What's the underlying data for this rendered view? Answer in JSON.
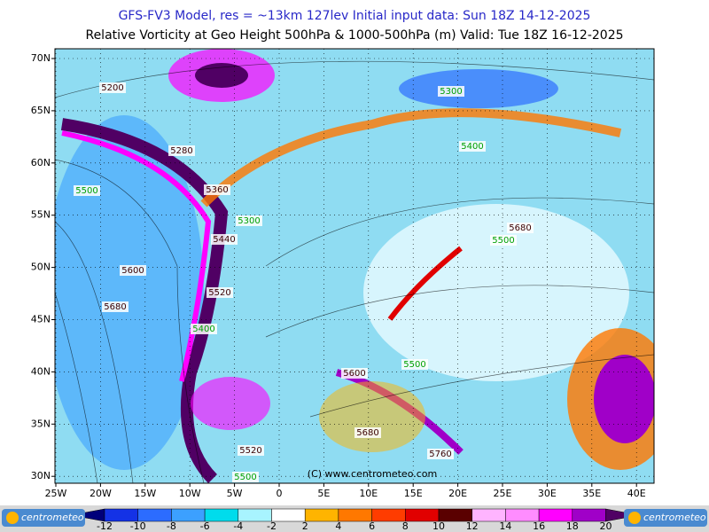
{
  "header": {
    "line1": "GFS-FV3 Model, res = ~13km 127lev    Initial input data: Sun 18Z 14-12-2025",
    "line2": "Relative Vorticity at Geo Height 500hPa & 1000-500hPa (m)   Valid: Tue 18Z 16-12-2025"
  },
  "map": {
    "lat_labels": [
      "70N",
      "65N",
      "60N",
      "55N",
      "50N",
      "45N",
      "40N",
      "35N",
      "30N"
    ],
    "lon_labels": [
      "25W",
      "20W",
      "15W",
      "10W",
      "5W",
      "0",
      "5E",
      "10E",
      "15E",
      "20E",
      "25E",
      "30E",
      "35E",
      "40E"
    ],
    "height_labels": [
      "5200",
      "5280",
      "5360",
      "5440",
      "5520",
      "5600",
      "5680",
      "5600",
      "5520",
      "5680",
      "5760",
      "5680"
    ],
    "thickness_labels": [
      "5300",
      "5400",
      "5500",
      "5300",
      "5500",
      "5400",
      "5500",
      "5500"
    ],
    "watermark": "(C) www.centrometeo.com"
  },
  "colorbar": {
    "ticks": [
      -12,
      -10,
      -8,
      -6,
      -4,
      -2,
      2,
      4,
      6,
      8,
      10,
      12,
      14,
      16,
      18,
      20
    ],
    "colors": [
      "#00007a",
      "#1432e6",
      "#2c6cff",
      "#3ca0ff",
      "#00dcec",
      "#a8f4ff",
      "#ffffff",
      "#ffb400",
      "#ff7800",
      "#ff3c00",
      "#e10000",
      "#5a0000",
      "#ffb4ff",
      "#ff8cff",
      "#ff00ff",
      "#a000c8",
      "#500064"
    ]
  },
  "footer": {
    "logo_left": "centrometeo",
    "logo_right": "centrometeo"
  }
}
